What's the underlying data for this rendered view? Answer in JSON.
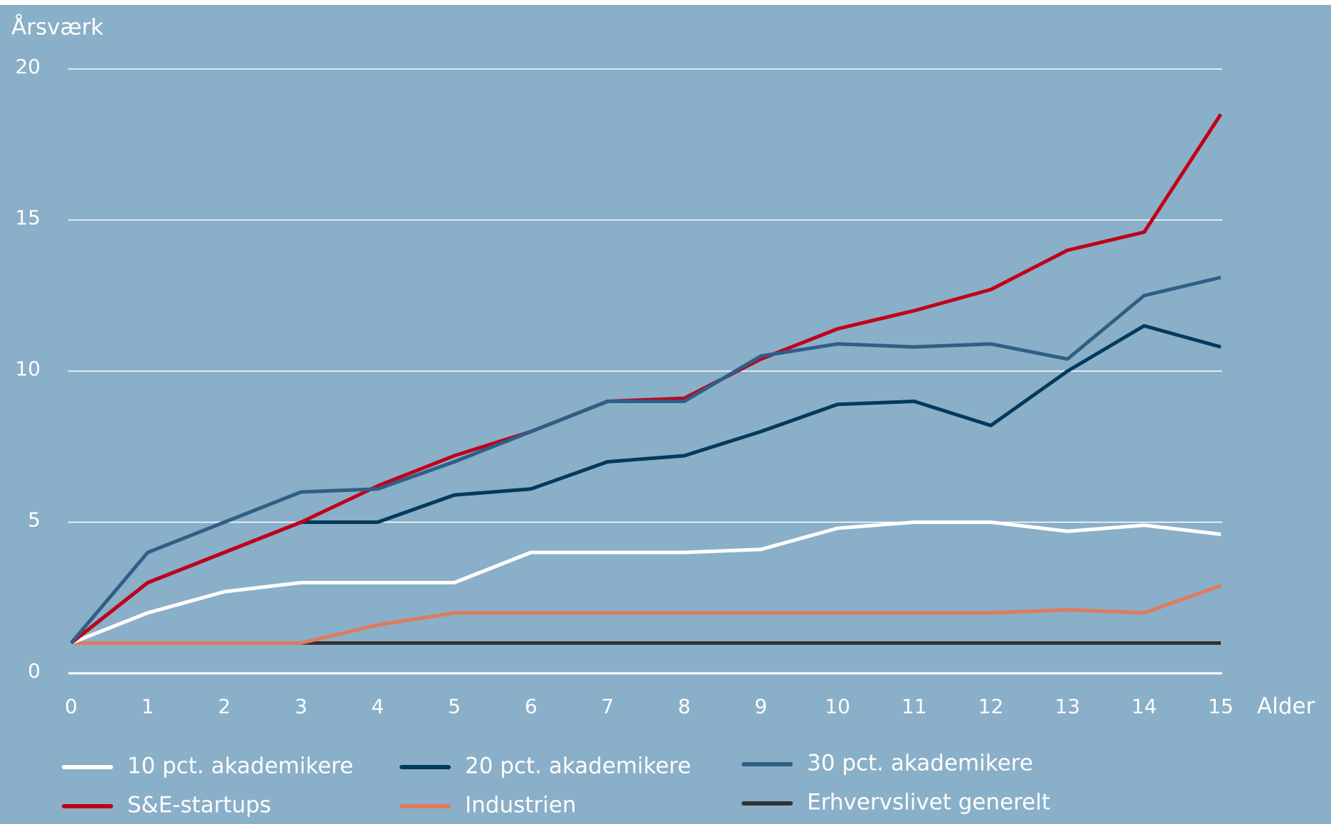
{
  "chart_data": {
    "type": "line",
    "ylabel": "Årsværk",
    "xlabel": "Alder",
    "x": [
      0,
      1,
      2,
      3,
      4,
      5,
      6,
      7,
      8,
      9,
      10,
      11,
      12,
      13,
      14,
      15
    ],
    "xlim": [
      0,
      15
    ],
    "xticks": [
      0,
      1,
      2,
      3,
      4,
      5,
      6,
      7,
      8,
      9,
      10,
      11,
      12,
      13,
      14,
      15
    ],
    "ylim": [
      0,
      20
    ],
    "yticks": [
      0,
      5,
      10,
      15,
      20
    ],
    "grid": true,
    "series": [
      {
        "name": "10 pct. akademikere",
        "color": "#ffffff",
        "values": [
          1,
          2,
          2.7,
          3,
          3,
          3,
          4,
          4,
          4,
          4.1,
          4.8,
          5,
          5,
          4.7,
          4.9,
          4.6
        ]
      },
      {
        "name": "20 pct. akademikere",
        "color": "#003a5d",
        "values": [
          1,
          3,
          4,
          5,
          5,
          5.9,
          6.1,
          7,
          7.2,
          8,
          8.9,
          9,
          8.2,
          10,
          11.5,
          10.8
        ]
      },
      {
        "name": "30 pct. akademikere",
        "color": "#2f5f86",
        "values": [
          1,
          4,
          5,
          6,
          6.1,
          7,
          8,
          9,
          9,
          10.5,
          10.9,
          10.8,
          10.9,
          10.4,
          12.5,
          13.1
        ]
      },
      {
        "name": "S&E-startups",
        "color": "#c0001a",
        "values": [
          1,
          3,
          4,
          5,
          6.2,
          7.2,
          8,
          9,
          9.1,
          10.4,
          11.4,
          12,
          12.7,
          14,
          14.6,
          18.5
        ]
      },
      {
        "name": "Industrien",
        "color": "#e07a5f",
        "values": [
          1,
          1,
          1,
          1,
          1.6,
          2,
          2,
          2,
          2,
          2,
          2,
          2,
          2,
          2.1,
          2,
          2.9
        ]
      },
      {
        "name": "Erhvervslivet generelt",
        "color": "#333333",
        "values": [
          1,
          1,
          1,
          1,
          1,
          1,
          1,
          1,
          1,
          1,
          1,
          1,
          1,
          1,
          1,
          1
        ]
      }
    ]
  }
}
